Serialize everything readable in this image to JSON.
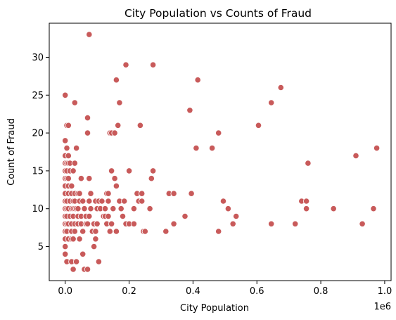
{
  "chart_data": {
    "type": "scatter",
    "title": "City Population vs Counts of Fraud",
    "xlabel": "City Population",
    "ylabel": "Count of Fraud",
    "x_offset_label": "1e6",
    "xlim": [
      -0.05,
      1.02
    ],
    "ylim": [
      0.5,
      34.5
    ],
    "x_ticks": [
      0.0,
      0.2,
      0.4,
      0.6,
      0.8,
      1.0
    ],
    "x_tick_labels": [
      "0.0",
      "0.2",
      "0.4",
      "0.6",
      "0.8",
      "1.0"
    ],
    "y_ticks": [
      5,
      10,
      15,
      20,
      25,
      30
    ],
    "y_tick_labels": [
      "5",
      "10",
      "15",
      "20",
      "25",
      "30"
    ],
    "grid": false,
    "point_color": "#c85a5a",
    "points": [
      [
        0.075,
        33
      ],
      [
        0.19,
        29
      ],
      [
        0.275,
        29
      ],
      [
        0.415,
        27
      ],
      [
        0.16,
        27
      ],
      [
        0.675,
        26
      ],
      [
        0.0,
        25
      ],
      [
        0.03,
        24
      ],
      [
        0.17,
        24
      ],
      [
        0.645,
        24
      ],
      [
        0.39,
        23
      ],
      [
        0.07,
        22
      ],
      [
        0.005,
        21
      ],
      [
        0.01,
        21
      ],
      [
        0.165,
        21
      ],
      [
        0.235,
        21
      ],
      [
        0.605,
        21
      ],
      [
        0.07,
        20
      ],
      [
        0.14,
        20
      ],
      [
        0.145,
        20
      ],
      [
        0.155,
        20
      ],
      [
        0.48,
        20
      ],
      [
        0.0,
        19
      ],
      [
        0.005,
        18
      ],
      [
        0.035,
        18
      ],
      [
        0.41,
        18
      ],
      [
        0.46,
        18
      ],
      [
        0.975,
        18
      ],
      [
        0.0,
        17
      ],
      [
        0.01,
        17
      ],
      [
        0.91,
        17
      ],
      [
        0.0,
        16
      ],
      [
        0.005,
        16
      ],
      [
        0.01,
        16
      ],
      [
        0.015,
        16
      ],
      [
        0.03,
        16
      ],
      [
        0.76,
        16
      ],
      [
        0.0,
        15
      ],
      [
        0.005,
        15
      ],
      [
        0.015,
        15
      ],
      [
        0.025,
        15
      ],
      [
        0.145,
        15
      ],
      [
        0.2,
        15
      ],
      [
        0.275,
        15
      ],
      [
        0.0,
        14
      ],
      [
        0.005,
        14
      ],
      [
        0.01,
        14
      ],
      [
        0.05,
        14
      ],
      [
        0.075,
        14
      ],
      [
        0.155,
        14
      ],
      [
        0.27,
        14
      ],
      [
        0.0,
        13
      ],
      [
        0.01,
        13
      ],
      [
        0.02,
        13
      ],
      [
        0.16,
        13
      ],
      [
        0.0,
        12
      ],
      [
        0.01,
        12
      ],
      [
        0.02,
        12
      ],
      [
        0.03,
        12
      ],
      [
        0.04,
        12
      ],
      [
        0.045,
        12
      ],
      [
        0.08,
        12
      ],
      [
        0.13,
        12
      ],
      [
        0.135,
        12
      ],
      [
        0.225,
        12
      ],
      [
        0.24,
        12
      ],
      [
        0.325,
        12
      ],
      [
        0.34,
        12
      ],
      [
        0.395,
        12
      ],
      [
        0.0,
        11
      ],
      [
        0.005,
        11
      ],
      [
        0.015,
        11
      ],
      [
        0.025,
        11
      ],
      [
        0.03,
        11
      ],
      [
        0.045,
        11
      ],
      [
        0.055,
        11
      ],
      [
        0.075,
        11
      ],
      [
        0.095,
        11
      ],
      [
        0.105,
        11
      ],
      [
        0.115,
        11
      ],
      [
        0.135,
        11
      ],
      [
        0.17,
        11
      ],
      [
        0.185,
        11
      ],
      [
        0.23,
        11
      ],
      [
        0.24,
        11
      ],
      [
        0.495,
        11
      ],
      [
        0.74,
        11
      ],
      [
        0.755,
        11
      ],
      [
        0.0,
        10
      ],
      [
        0.005,
        10
      ],
      [
        0.01,
        10
      ],
      [
        0.02,
        10
      ],
      [
        0.025,
        10
      ],
      [
        0.03,
        10
      ],
      [
        0.035,
        10
      ],
      [
        0.04,
        10
      ],
      [
        0.06,
        10
      ],
      [
        0.08,
        10
      ],
      [
        0.1,
        10
      ],
      [
        0.11,
        10
      ],
      [
        0.125,
        10
      ],
      [
        0.15,
        10
      ],
      [
        0.175,
        10
      ],
      [
        0.215,
        10
      ],
      [
        0.265,
        10
      ],
      [
        0.51,
        10
      ],
      [
        0.755,
        10
      ],
      [
        0.84,
        10
      ],
      [
        0.965,
        10
      ],
      [
        0.0,
        9
      ],
      [
        0.005,
        9
      ],
      [
        0.015,
        9
      ],
      [
        0.025,
        9
      ],
      [
        0.04,
        9
      ],
      [
        0.05,
        9
      ],
      [
        0.065,
        9
      ],
      [
        0.075,
        9
      ],
      [
        0.12,
        9
      ],
      [
        0.125,
        9
      ],
      [
        0.135,
        9
      ],
      [
        0.18,
        9
      ],
      [
        0.375,
        9
      ],
      [
        0.535,
        9
      ],
      [
        0.0,
        8
      ],
      [
        0.005,
        8
      ],
      [
        0.01,
        8
      ],
      [
        0.02,
        8
      ],
      [
        0.03,
        8
      ],
      [
        0.04,
        8
      ],
      [
        0.05,
        8
      ],
      [
        0.065,
        8
      ],
      [
        0.07,
        8
      ],
      [
        0.09,
        8
      ],
      [
        0.1,
        8
      ],
      [
        0.13,
        8
      ],
      [
        0.145,
        8
      ],
      [
        0.19,
        8
      ],
      [
        0.2,
        8
      ],
      [
        0.215,
        8
      ],
      [
        0.34,
        8
      ],
      [
        0.525,
        8
      ],
      [
        0.645,
        8
      ],
      [
        0.72,
        8
      ],
      [
        0.93,
        8
      ],
      [
        0.0,
        7
      ],
      [
        0.005,
        7
      ],
      [
        0.02,
        7
      ],
      [
        0.03,
        7
      ],
      [
        0.055,
        7
      ],
      [
        0.085,
        7
      ],
      [
        0.095,
        7
      ],
      [
        0.14,
        7
      ],
      [
        0.16,
        7
      ],
      [
        0.245,
        7
      ],
      [
        0.25,
        7
      ],
      [
        0.315,
        7
      ],
      [
        0.48,
        7
      ],
      [
        0.0,
        6
      ],
      [
        0.01,
        6
      ],
      [
        0.02,
        6
      ],
      [
        0.025,
        6
      ],
      [
        0.045,
        6
      ],
      [
        0.095,
        6
      ],
      [
        0.0,
        5
      ],
      [
        0.09,
        5
      ],
      [
        0.0,
        4
      ],
      [
        0.055,
        4
      ],
      [
        0.005,
        3
      ],
      [
        0.02,
        3
      ],
      [
        0.035,
        3
      ],
      [
        0.105,
        3
      ],
      [
        0.025,
        2
      ],
      [
        0.06,
        2
      ],
      [
        0.07,
        2
      ]
    ]
  }
}
